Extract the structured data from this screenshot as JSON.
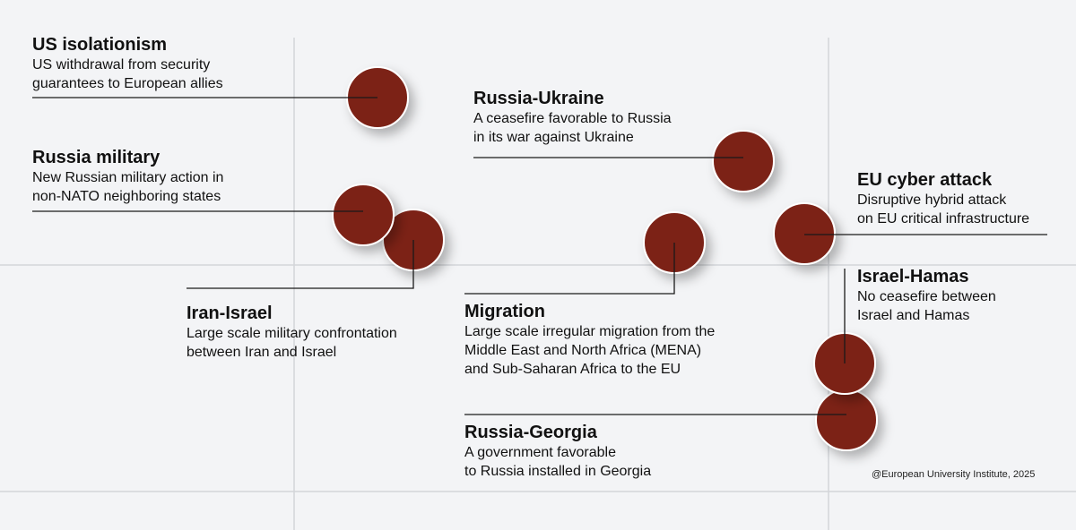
{
  "chart_data": {
    "type": "scatter",
    "marker_color": "#7b2219",
    "points": [
      {
        "id": "us-isolationism",
        "title": "US isolationism",
        "desc": [
          "US withdrawal from security",
          "guarantees to European allies"
        ]
      },
      {
        "id": "russia-military",
        "title": "Russia military",
        "desc": [
          "New Russian military action in",
          "non-NATO neighboring states"
        ]
      },
      {
        "id": "iran-israel",
        "title": "Iran-Israel",
        "desc": [
          "Large scale military confrontation",
          "between Iran and Israel"
        ]
      },
      {
        "id": "russia-ukraine",
        "title": "Russia-Ukraine",
        "desc": [
          "A ceasefire favorable to Russia",
          "in its war against Ukraine"
        ]
      },
      {
        "id": "migration",
        "title": "Migration",
        "desc": [
          "Large scale irregular migration from the",
          "Middle East and North Africa (MENA)",
          "and Sub-Saharan Africa to the EU"
        ]
      },
      {
        "id": "eu-cyber-attack",
        "title": "EU cyber attack",
        "desc": [
          "Disruptive hybrid attack",
          "on EU critical infrastructure"
        ]
      },
      {
        "id": "israel-hamas",
        "title": "Israel-Hamas",
        "desc": [
          "No ceasefire between",
          "Israel and Hamas"
        ]
      },
      {
        "id": "russia-georgia",
        "title": "Russia-Georgia",
        "desc": [
          "A government favorable",
          "to Russia installed in Georgia"
        ]
      }
    ]
  },
  "credit": "@European University Institute, 2025"
}
